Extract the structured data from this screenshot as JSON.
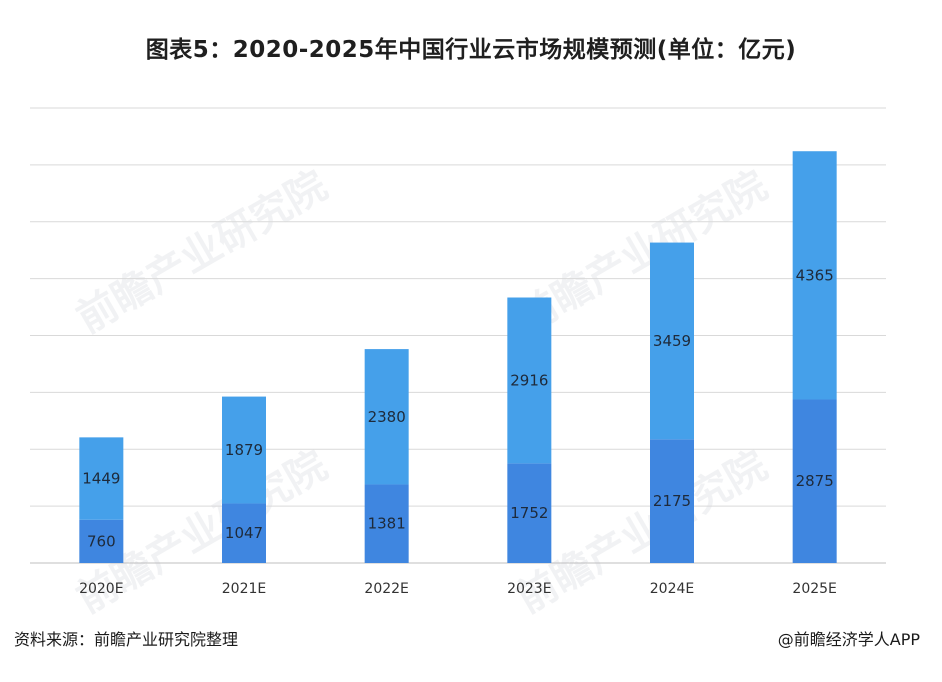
{
  "title": "图表5：2020-2025年中国行业云市场规模预测(单位：亿元)",
  "chart_data": {
    "type": "bar",
    "stacked": true,
    "categories": [
      "2020E",
      "2021E",
      "2022E",
      "2023E",
      "2024E",
      "2025E"
    ],
    "series": [
      {
        "name": "bottom",
        "values": [
          760,
          1047,
          1381,
          1752,
          2175,
          2875
        ],
        "color": "#3f86e0"
      },
      {
        "name": "top",
        "values": [
          1449,
          1879,
          2380,
          2916,
          3459,
          4365
        ],
        "color": "#45a0ea"
      }
    ],
    "ylim": [
      0,
      8000
    ],
    "grid": true,
    "legend": "none"
  },
  "watermark": "前瞻产业研究院",
  "footer": {
    "source": "资料来源：前瞻产业研究院整理",
    "credit": "@前瞻经济学人APP"
  }
}
